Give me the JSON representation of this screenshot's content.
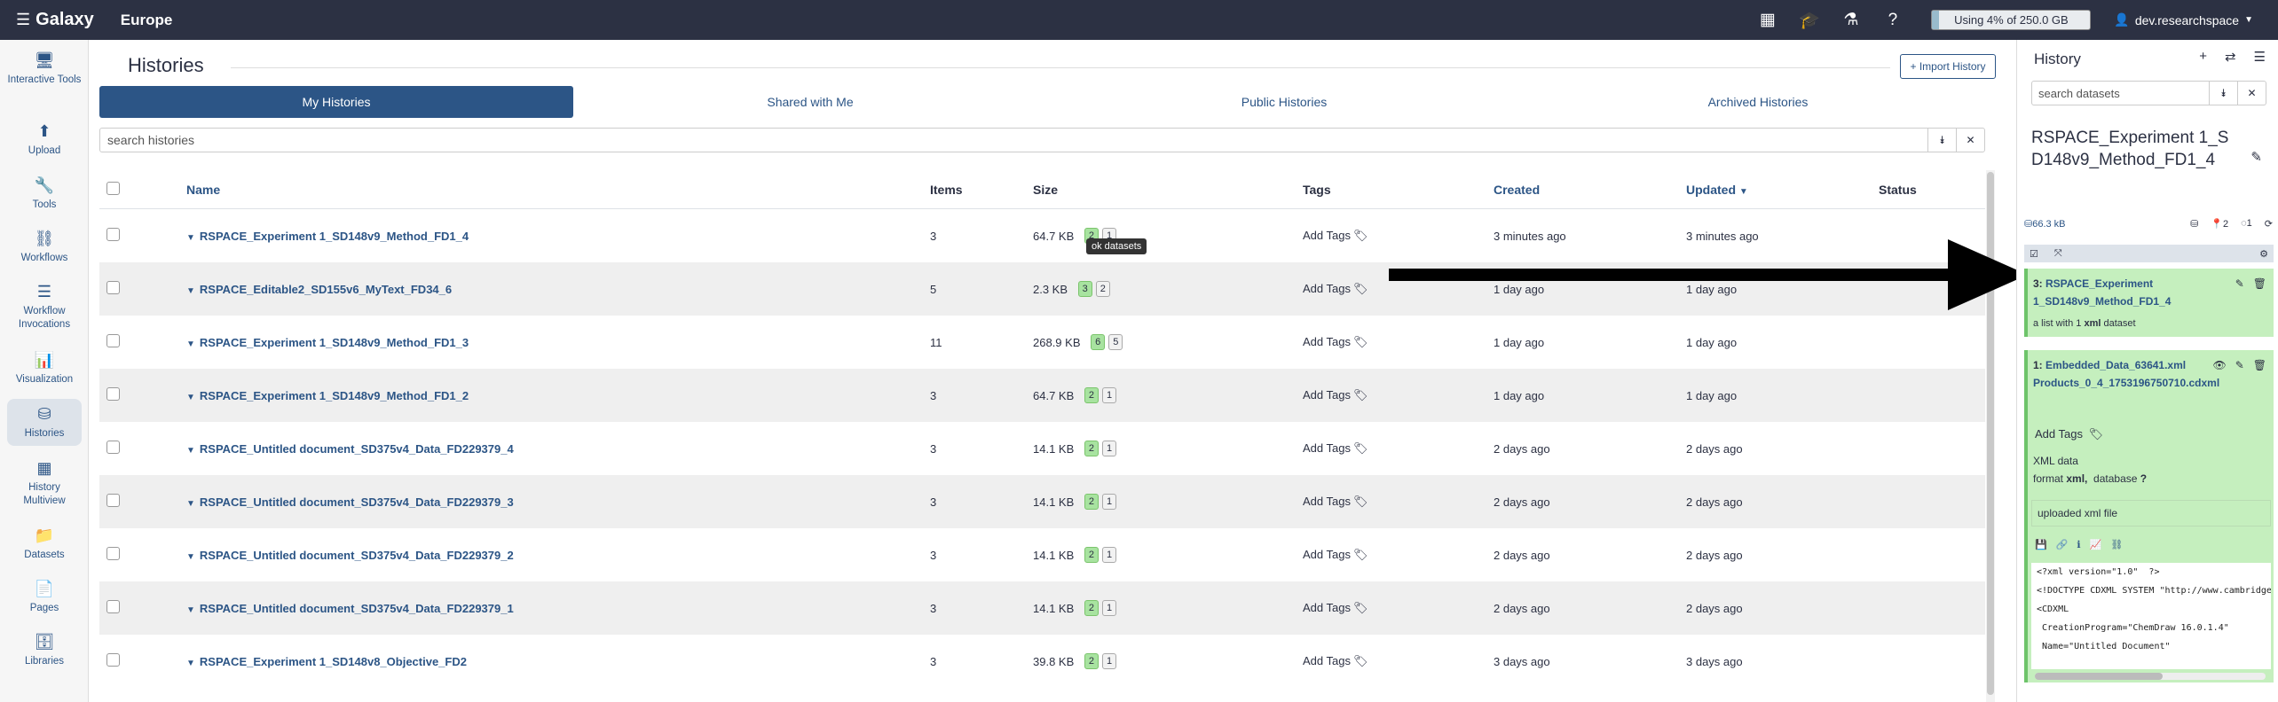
{
  "nav": {
    "brand": "Galaxy",
    "subtitle": "Europe",
    "quota_text": "Using 4% of 250.0 GB",
    "quota_percent": 4,
    "user": "dev.researchspace"
  },
  "activity": [
    {
      "name": "interactive-tools",
      "icon": "🖥",
      "label": "Interactive Tools"
    },
    {
      "name": "upload",
      "icon": "⬆",
      "label": "Upload"
    },
    {
      "name": "tools",
      "icon": "🔧",
      "label": "Tools"
    },
    {
      "name": "workflows",
      "icon": "⛓",
      "label": "Workflows"
    },
    {
      "name": "workflow-invocations",
      "icon": "☰",
      "label": "Workflow Invocations"
    },
    {
      "name": "visualization",
      "icon": "📊",
      "label": "Visualization"
    },
    {
      "name": "histories",
      "icon": "⛁",
      "label": "Histories"
    },
    {
      "name": "history-multiview",
      "icon": "▦",
      "label": "History Multiview"
    },
    {
      "name": "datasets",
      "icon": "📁",
      "label": "Datasets"
    },
    {
      "name": "pages",
      "icon": "📄",
      "label": "Pages"
    },
    {
      "name": "libraries",
      "icon": "🗄",
      "label": "Libraries"
    }
  ],
  "page": {
    "title": "Histories",
    "import_button": "+ Import History",
    "tabs": [
      "My Histories",
      "Shared with Me",
      "Public Histories",
      "Archived Histories"
    ],
    "search_placeholder": "search histories",
    "tooltip": "ok datasets"
  },
  "table": {
    "headers": {
      "name": "Name",
      "items": "Items",
      "size": "Size",
      "tags": "Tags",
      "created": "Created",
      "updated": "Updated",
      "status": "Status"
    },
    "add_tags": "Add Tags",
    "rows": [
      {
        "name": "RSPACE_Experiment 1_SD148v9_Method_FD1_4",
        "items": "3",
        "size": "64.7 KB",
        "ok": "2",
        "del": "1",
        "created": "3 minutes ago",
        "updated": "3 minutes ago"
      },
      {
        "name": "RSPACE_Editable2_SD155v6_MyText_FD34_6",
        "items": "5",
        "size": "2.3 KB",
        "ok": "3",
        "del": "2",
        "created": "1 day ago",
        "updated": "1 day ago"
      },
      {
        "name": "RSPACE_Experiment 1_SD148v9_Method_FD1_3",
        "items": "11",
        "size": "268.9 KB",
        "ok": "6",
        "del": "5",
        "created": "1 day ago",
        "updated": "1 day ago"
      },
      {
        "name": "RSPACE_Experiment 1_SD148v9_Method_FD1_2",
        "items": "3",
        "size": "64.7 KB",
        "ok": "2",
        "del": "1",
        "created": "1 day ago",
        "updated": "1 day ago"
      },
      {
        "name": "RSPACE_Untitled document_SD375v4_Data_FD229379_4",
        "items": "3",
        "size": "14.1 KB",
        "ok": "2",
        "del": "1",
        "created": "2 days ago",
        "updated": "2 days ago"
      },
      {
        "name": "RSPACE_Untitled document_SD375v4_Data_FD229379_3",
        "items": "3",
        "size": "14.1 KB",
        "ok": "2",
        "del": "1",
        "created": "2 days ago",
        "updated": "2 days ago"
      },
      {
        "name": "RSPACE_Untitled document_SD375v4_Data_FD229379_2",
        "items": "3",
        "size": "14.1 KB",
        "ok": "2",
        "del": "1",
        "created": "2 days ago",
        "updated": "2 days ago"
      },
      {
        "name": "RSPACE_Untitled document_SD375v4_Data_FD229379_1",
        "items": "3",
        "size": "14.1 KB",
        "ok": "2",
        "del": "1",
        "created": "2 days ago",
        "updated": "2 days ago"
      },
      {
        "name": "RSPACE_Experiment 1_SD148v8_Objective_FD2",
        "items": "3",
        "size": "39.8 KB",
        "ok": "2",
        "del": "1",
        "created": "3 days ago",
        "updated": "3 days ago"
      }
    ]
  },
  "history": {
    "title": "History",
    "search_placeholder": "search datasets",
    "name": "RSPACE_Experiment 1_SD148v9_Method_FD1_4",
    "size": "66.3 kB",
    "stat_deleted": "2",
    "stat_hidden": "1",
    "datasets": [
      {
        "hid": "3:",
        "title": "RSPACE_Experiment 1_SD148v9_Method_FD1_4",
        "sub_prefix": "a list with 1",
        "sub_bold": "xml",
        "sub_suffix": "dataset"
      },
      {
        "hid": "1:",
        "title": "Embedded_Data_63641.xml Products_0_4_1753196750710.cdxml",
        "tags": "Add Tags",
        "info_line1": "XML data",
        "format_label": "format",
        "format": "xml,",
        "db_label": "database",
        "db": "?",
        "info": "uploaded xml file",
        "peek": [
          "<?xml version=\"1.0\"  ?>",
          "<!DOCTYPE CDXML SYSTEM \"http://www.cambridgesoft.com/xml/cdxml.dtd\" >",
          "<CDXML",
          " CreationProgram=\"ChemDraw 16.0.1.4\"",
          " Name=\"Untitled Document\""
        ]
      }
    ]
  }
}
